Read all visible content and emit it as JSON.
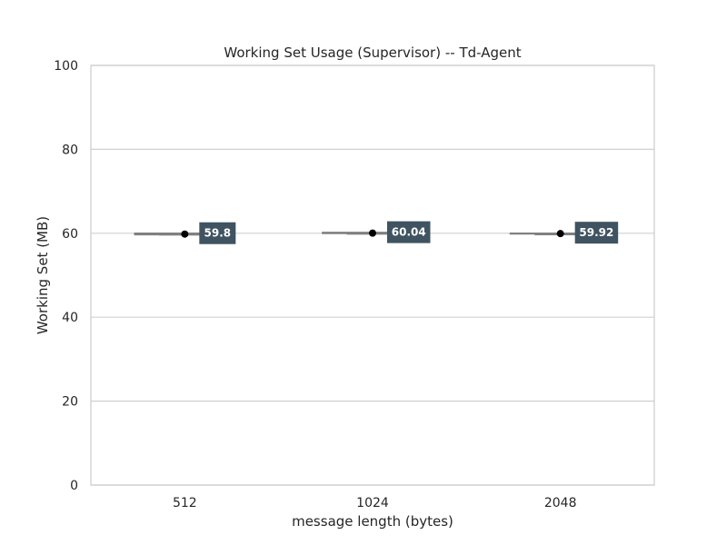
{
  "chart_data": {
    "type": "box",
    "title": "Working Set Usage (Supervisor) -- Td-Agent",
    "xlabel": "message length (bytes)",
    "ylabel": "Working Set (MB)",
    "ylim": [
      0,
      100
    ],
    "yticks": [
      "0",
      "20",
      "40",
      "60",
      "80",
      "100"
    ],
    "categories": [
      "512",
      "1024",
      "2048"
    ],
    "series": [
      {
        "category": "512",
        "min": 59.7,
        "q1": 59.75,
        "median": 59.8,
        "q3": 59.9,
        "max": 59.95,
        "mean": 59.8,
        "mean_label": "59.8"
      },
      {
        "category": "1024",
        "min": 60.0,
        "q1": 60.0,
        "median": 60.04,
        "q3": 60.1,
        "max": 60.15,
        "mean": 60.04,
        "mean_label": "60.04"
      },
      {
        "category": "2048",
        "min": 59.9,
        "q1": 59.9,
        "median": 59.92,
        "q3": 59.95,
        "max": 59.95,
        "mean": 59.92,
        "mean_label": "59.92"
      }
    ],
    "grid": true,
    "colors": {
      "box": "#808080",
      "grid": "#d0d0d0",
      "mean_marker": "#000000",
      "label_bg": "#3f5360",
      "frame": "#cccccc"
    }
  }
}
